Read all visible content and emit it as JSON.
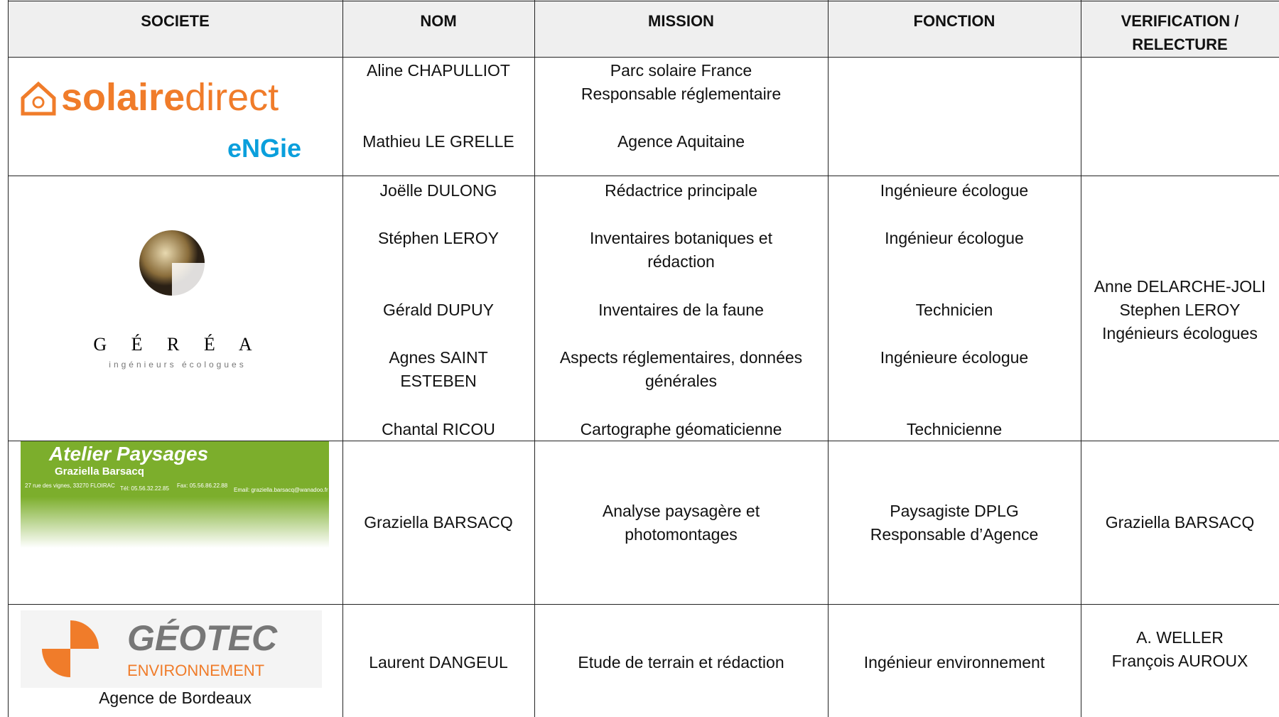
{
  "header": [
    "SOCIETE",
    "NOM",
    "MISSION",
    "FONCTION",
    "VERIFICATION /\nRELECTURE"
  ],
  "rows": [
    {
      "logo": {
        "name_bold": "solaire",
        "name_light": "direct",
        "brand": "eNGie"
      },
      "people": [
        {
          "nom": "Aline CHAPULLIOT",
          "mission": "Parc solaire France\nResponsable réglementaire"
        },
        {
          "nom": "Mathieu LE GRELLE",
          "mission": "Agence Aquitaine"
        }
      ]
    },
    {
      "logo": {
        "letters": "G É R É A",
        "tagline": "ingénieurs écologues"
      },
      "people": [
        {
          "nom": "Joëlle DULONG",
          "mission": "Rédactrice principale",
          "fonction": "Ingénieure écologue"
        },
        {
          "nom": "Stéphen LEROY",
          "mission": "Inventaires botaniques et\nrédaction",
          "fonction": "Ingénieur écologue"
        },
        {
          "nom": "Gérald DUPUY",
          "mission": "Inventaires de la faune",
          "fonction": "Technicien"
        },
        {
          "nom": "Agnes SAINT\nESTEBEN",
          "mission": "Aspects réglementaires, données\ngénérales",
          "fonction": "Ingénieure écologue"
        },
        {
          "nom": "Chantal RICOU",
          "mission": "Cartographe géomaticienne",
          "fonction": "Technicienne"
        }
      ],
      "verification": "Anne DELARCHE-JOLI\nStephen LEROY\nIngénieurs écologues"
    },
    {
      "logo": {
        "title": "Atelier Paysages",
        "subtitle": "Graziella Barsacq",
        "address": "27 rue des vignes, 33270 FLOIRAC",
        "tel": "Tél: 05.56.32.22.85",
        "fax": "Fax: 05.56.86.22.88",
        "email": "Email: graziella.barsacq@wanadoo.fr"
      },
      "people": [
        {
          "nom": "Graziella BARSACQ",
          "mission": "Analyse paysagère et\nphotomontages",
          "fonction": "Paysagiste DPLG\nResponsable d’Agence"
        }
      ],
      "verification": "Graziella BARSACQ"
    },
    {
      "logo": {
        "name": "GÉOTEC",
        "sub": "ENVIRONNEMENT",
        "caption": "Agence de Bordeaux"
      },
      "people": [
        {
          "nom": "Laurent DANGEUL",
          "mission": "Etude de terrain et rédaction",
          "fonction": "Ingénieur environnement"
        }
      ],
      "verification": "A. WELLER\nFrançois AUROUX"
    }
  ]
}
